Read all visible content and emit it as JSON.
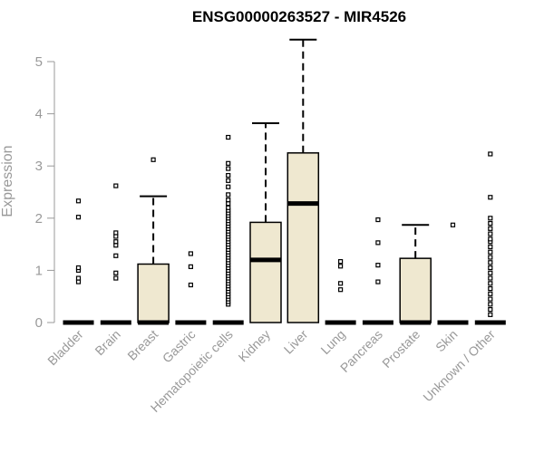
{
  "chart_data": {
    "type": "box",
    "title": "ENSG00000263527 - MIR4526",
    "ylabel": "Expression",
    "xlabel": "",
    "ylim": [
      0,
      5.5
    ],
    "yticks": [
      0,
      1,
      2,
      3,
      4,
      5
    ],
    "box_fill": "#EFE8D0",
    "categories": [
      "Bladder",
      "Brain",
      "Breast",
      "Gastric",
      "Hematopoietic cells",
      "Kidney",
      "Liver",
      "Lung",
      "Pancreas",
      "Prostate",
      "Skin",
      "Unknown / Other"
    ],
    "boxes": [
      {
        "q1": 0,
        "median": 0,
        "q3": 0,
        "whisker_low": 0,
        "whisker_high": 0,
        "outliers": [
          0.78,
          0.85,
          1.0,
          1.05,
          2.02,
          2.33
        ]
      },
      {
        "q1": 0,
        "median": 0,
        "q3": 0,
        "whisker_low": 0,
        "whisker_high": 0,
        "outliers": [
          0.85,
          0.95,
          1.28,
          1.48,
          1.55,
          1.65,
          1.72,
          2.62
        ]
      },
      {
        "q1": 0,
        "median": 0,
        "q3": 1.12,
        "whisker_low": 0,
        "whisker_high": 2.42,
        "outliers": [
          3.12
        ]
      },
      {
        "q1": 0,
        "median": 0,
        "q3": 0,
        "whisker_low": 0,
        "whisker_high": 0,
        "outliers": [
          0.72,
          1.07,
          1.32
        ]
      },
      {
        "q1": 0,
        "median": 0,
        "q3": 0,
        "whisker_low": 0,
        "whisker_high": 0,
        "outliers": [
          0.35,
          0.4,
          0.45,
          0.5,
          0.55,
          0.6,
          0.65,
          0.7,
          0.75,
          0.8,
          0.85,
          0.9,
          0.95,
          1.0,
          1.05,
          1.1,
          1.15,
          1.2,
          1.25,
          1.3,
          1.35,
          1.4,
          1.45,
          1.5,
          1.55,
          1.6,
          1.65,
          1.7,
          1.75,
          1.8,
          1.85,
          1.9,
          1.95,
          2.0,
          2.05,
          2.1,
          2.15,
          2.2,
          2.28,
          2.35,
          2.45,
          2.6,
          2.72,
          2.82,
          2.95,
          3.05,
          3.55
        ]
      },
      {
        "q1": 0,
        "median": 1.2,
        "q3": 1.92,
        "whisker_low": 0,
        "whisker_high": 3.82,
        "outliers": []
      },
      {
        "q1": 0,
        "median": 2.28,
        "q3": 3.25,
        "whisker_low": 0,
        "whisker_high": 5.42,
        "outliers": []
      },
      {
        "q1": 0,
        "median": 0,
        "q3": 0,
        "whisker_low": 0,
        "whisker_high": 0,
        "outliers": [
          0.63,
          0.75,
          1.08,
          1.17
        ]
      },
      {
        "q1": 0,
        "median": 0,
        "q3": 0,
        "whisker_low": 0,
        "whisker_high": 0,
        "outliers": [
          0.78,
          1.1,
          1.53,
          1.97
        ]
      },
      {
        "q1": 0,
        "median": 0,
        "q3": 1.23,
        "whisker_low": 0,
        "whisker_high": 1.87,
        "outliers": []
      },
      {
        "q1": 0,
        "median": 0,
        "q3": 0,
        "whisker_low": 0,
        "whisker_high": 0,
        "outliers": [
          1.87
        ]
      },
      {
        "q1": 0,
        "median": 0,
        "q3": 0,
        "whisker_low": 0,
        "whisker_high": 0,
        "outliers": [
          0.15,
          0.25,
          0.35,
          0.45,
          0.55,
          0.65,
          0.75,
          0.85,
          0.95,
          1.05,
          1.15,
          1.25,
          1.35,
          1.45,
          1.55,
          1.6,
          1.7,
          1.8,
          1.9,
          2.0,
          2.4,
          3.23
        ]
      }
    ]
  }
}
